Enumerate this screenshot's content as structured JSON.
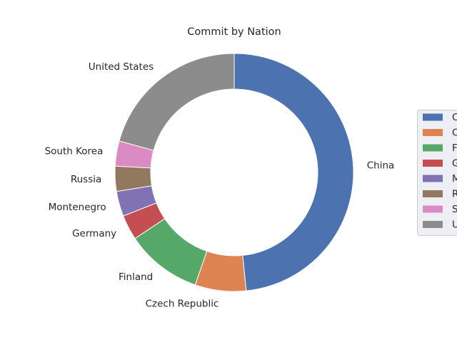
{
  "chart_data": {
    "type": "pie",
    "donut": true,
    "title": "Commit by Nation",
    "start_angle_deg": 90,
    "direction": "clockwise",
    "slices": [
      {
        "label": "China",
        "value": 48.3,
        "color": "#4c72b0"
      },
      {
        "label": "Czech Republic",
        "value": 6.9,
        "color": "#dd8452"
      },
      {
        "label": "Finland",
        "value": 10.3,
        "color": "#55a868"
      },
      {
        "label": "Germany",
        "value": 3.4,
        "color": "#c44e52"
      },
      {
        "label": "Montenegro",
        "value": 3.4,
        "color": "#8172b3"
      },
      {
        "label": "Russia",
        "value": 3.4,
        "color": "#937860"
      },
      {
        "label": "South Korea",
        "value": 3.4,
        "color": "#da8bc3"
      },
      {
        "label": "United States",
        "value": 20.7,
        "color": "#8c8c8c"
      }
    ],
    "legend": {
      "placement": "right",
      "entries": [
        "C",
        "C",
        "F",
        "G",
        "M",
        "R",
        "S",
        "U"
      ]
    },
    "grid": false
  }
}
